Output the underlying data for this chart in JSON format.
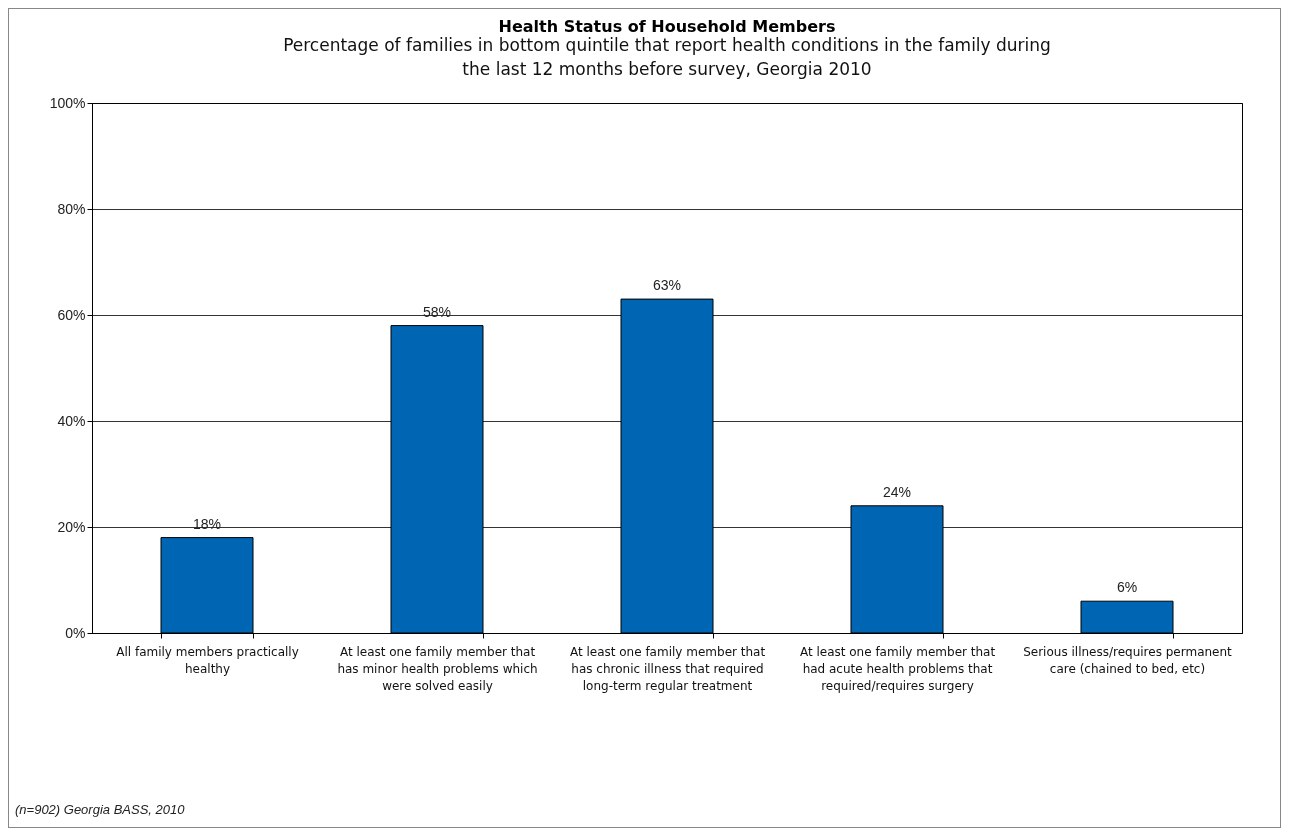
{
  "chart_data": {
    "type": "bar",
    "title": "Health Status of Household Members",
    "subtitle": "Percentage of families in bottom quintile that report health conditions in the family during the last 12 months before survey, Georgia 2010",
    "categories": [
      "All family members practically healthy",
      "At least one family member that has minor health problems which were solved easily",
      "At least one family member that has chronic illness that required long-term regular treatment",
      "At least one family member that had acute health problems that required/requires surgery",
      "Serious illness/requires permanent care (chained to bed, etc)"
    ],
    "values": [
      18,
      58,
      63,
      24,
      6
    ],
    "value_labels": [
      "18%",
      "58%",
      "63%",
      "24%",
      "6%"
    ],
    "color": "#0066b3",
    "ylim": [
      0,
      100
    ],
    "yticks": [
      {
        "value": 0,
        "label": "0%"
      },
      {
        "value": 20,
        "label": "20%"
      },
      {
        "value": 40,
        "label": "40%"
      },
      {
        "value": 60,
        "label": "60%"
      },
      {
        "value": 80,
        "label": "80%"
      },
      {
        "value": 100,
        "label": "100%"
      }
    ],
    "grid": "y",
    "annotations": [
      "(n=902) Georgia BASS, 2010"
    ]
  }
}
